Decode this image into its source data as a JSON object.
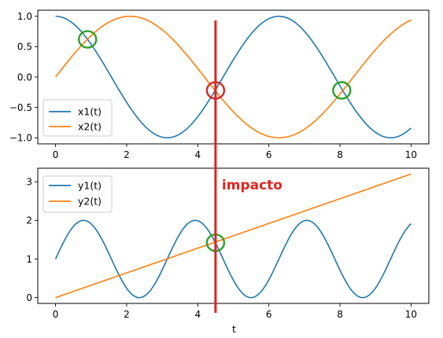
{
  "chart_data": [
    {
      "type": "line",
      "panel": "top",
      "x_range": [
        0,
        10
      ],
      "xlim": [
        -0.5,
        10.5
      ],
      "ylim": [
        -1.1,
        1.1
      ],
      "xticks": [
        0,
        2,
        4,
        6,
        8,
        10
      ],
      "xtick_labels": [
        "0",
        "2",
        "4",
        "6",
        "8",
        "10"
      ],
      "yticks": [
        1.0,
        0.5,
        0.0,
        -0.5,
        -1.0
      ],
      "ytick_labels": [
        "1.0",
        "0.5",
        "0.0",
        "−0.5",
        "−1.0"
      ],
      "series": [
        {
          "name": "x1(t)",
          "function": "cos(t)",
          "color": "#1f77b4"
        },
        {
          "name": "x2(t)",
          "function": "sin(0.75 t)",
          "color": "#ff7f0e"
        }
      ],
      "legend": "lower-left",
      "markers": [
        {
          "shape": "circle",
          "color": "#2ca02c",
          "x": 0.9,
          "y": 0.62
        },
        {
          "shape": "circle",
          "color": "#d62728",
          "x": 4.5,
          "y": -0.22
        },
        {
          "shape": "circle",
          "color": "#2ca02c",
          "x": 8.05,
          "y": -0.22
        }
      ]
    },
    {
      "type": "line",
      "panel": "bottom",
      "x_range": [
        0,
        10
      ],
      "xlim": [
        -0.5,
        10.5
      ],
      "ylim": [
        -0.15,
        3.35
      ],
      "xticks": [
        0,
        2,
        4,
        6,
        8,
        10
      ],
      "xtick_labels": [
        "0",
        "2",
        "4",
        "6",
        "8",
        "10"
      ],
      "yticks": [
        0,
        1,
        2,
        3
      ],
      "ytick_labels": [
        "0",
        "1",
        "2",
        "3"
      ],
      "xlabel": "t",
      "series": [
        {
          "name": "y1(t)",
          "function": "1 + sin(2t)",
          "color": "#1f77b4"
        },
        {
          "name": "y2(t)",
          "function": "0.32 t",
          "color": "#ff7f0e"
        }
      ],
      "legend": "top-left",
      "markers": [
        {
          "shape": "circle",
          "color": "#2ca02c",
          "x": 4.5,
          "y": 1.42
        }
      ]
    }
  ],
  "overlay": {
    "vertical_line": {
      "x": 4.5,
      "color": "#e0241f"
    },
    "annotation_text": "impacto"
  }
}
